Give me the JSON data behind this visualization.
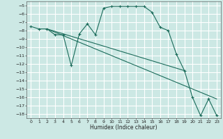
{
  "xlabel": "Humidex (Indice chaleur)",
  "bg_color": "#cce8e4",
  "grid_color": "#ffffff",
  "line_color": "#1a6b5a",
  "xlim": [
    -0.5,
    23.5
  ],
  "ylim": [
    -18.5,
    -4.5
  ],
  "xticks": [
    0,
    1,
    2,
    3,
    4,
    5,
    6,
    7,
    8,
    9,
    10,
    11,
    12,
    13,
    14,
    15,
    16,
    17,
    18,
    19,
    20,
    21,
    22,
    23
  ],
  "yticks": [
    -5,
    -6,
    -7,
    -8,
    -9,
    -10,
    -11,
    -12,
    -13,
    -14,
    -15,
    -16,
    -17,
    -18
  ],
  "curve1_x": [
    0,
    1,
    2,
    3,
    4,
    5,
    6,
    7,
    8,
    9,
    10,
    11,
    12,
    13,
    14,
    15,
    16,
    17,
    18,
    19,
    20,
    21,
    22,
    23
  ],
  "curve1_y": [
    -7.5,
    -7.8,
    -7.8,
    -8.5,
    -8.5,
    -12.2,
    -8.4,
    -7.2,
    -8.5,
    -5.3,
    -5.1,
    -5.1,
    -5.1,
    -5.1,
    -5.1,
    -5.8,
    -7.6,
    -8.0,
    -10.8,
    -12.8,
    -16.0,
    -18.2,
    -16.2,
    -18.2
  ],
  "curve2_x": [
    2,
    23
  ],
  "curve2_y": [
    -7.8,
    -16.2
  ],
  "curve3_x": [
    2,
    19
  ],
  "curve3_y": [
    -7.8,
    -12.8
  ]
}
